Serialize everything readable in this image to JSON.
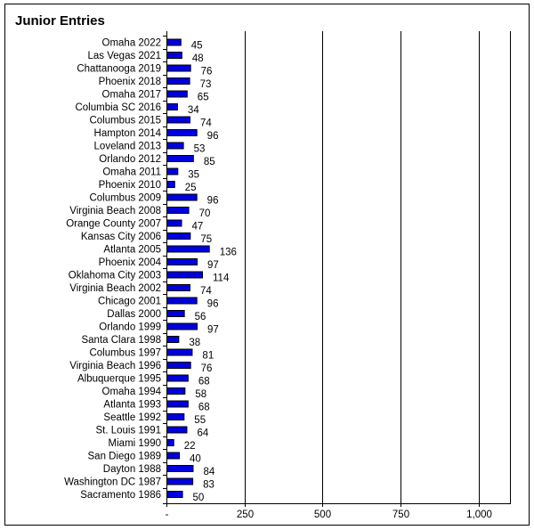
{
  "chart_data": {
    "type": "bar",
    "orientation": "horizontal",
    "title": "Junior Entries",
    "categories": [
      "Omaha 2022",
      "Las Vegas 2021",
      "Chattanooga 2019",
      "Phoenix 2018",
      "Omaha 2017",
      "Columbia SC 2016",
      "Columbus 2015",
      "Hampton 2014",
      "Loveland 2013",
      "Orlando 2012",
      "Omaha 2011",
      "Phoenix 2010",
      "Columbus 2009",
      "Virginia Beach 2008",
      "Orange County 2007",
      "Kansas City 2006",
      "Atlanta 2005",
      "Phoenix 2004",
      "Oklahoma City 2003",
      "Virginia Beach 2002",
      "Chicago 2001",
      "Dallas 2000",
      "Orlando 1999",
      "Santa Clara 1998",
      "Columbus 1997",
      "Virginia Beach 1996",
      "Albuquerque 1995",
      "Omaha 1994",
      "Atlanta 1993",
      "Seattle 1992",
      "St. Louis 1991",
      "Miami 1990",
      "San Diego 1989",
      "Dayton 1988",
      "Washington DC 1987",
      "Sacramento 1986"
    ],
    "values": [
      45,
      48,
      76,
      73,
      65,
      34,
      74,
      96,
      53,
      85,
      35,
      25,
      96,
      70,
      47,
      75,
      136,
      97,
      114,
      74,
      96,
      56,
      97,
      38,
      81,
      76,
      68,
      58,
      68,
      55,
      64,
      22,
      40,
      84,
      83,
      50
    ],
    "xlim": [
      0,
      1100
    ],
    "xticks": [
      0,
      250,
      500,
      750,
      1000
    ],
    "xtick_labels": [
      "-",
      "250",
      "500",
      "750",
      "1,000"
    ],
    "grid": "vertical",
    "legend": "none",
    "bar_color": "#0000dd",
    "bar_edge_color": "#000000"
  }
}
